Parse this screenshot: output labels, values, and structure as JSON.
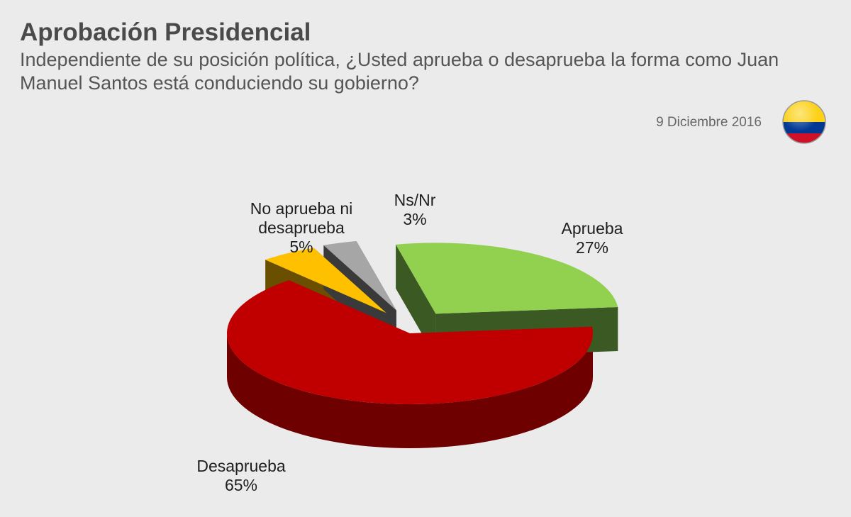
{
  "header": {
    "title": "Aprobación Presidencial",
    "question": "Independiente de su posición política, ¿Usted aprueba o desaprueba la forma como Juan Manuel Santos está conduciendo su gobierno?",
    "date": "9 Diciembre 2016",
    "flag_icon": "colombia-flag-icon",
    "flag_colors": [
      "#fcd116",
      "#003893",
      "#ce1126"
    ]
  },
  "chart_data": {
    "type": "pie",
    "title": "Aprobación Presidencial",
    "slices": [
      {
        "label_lines": [
          "Aprueba"
        ],
        "label": "Aprueba",
        "value": 27,
        "value_label": "27%",
        "color": "#92d050",
        "side_color": "#3b5a23",
        "exploded": true
      },
      {
        "label_lines": [
          "Desaprueba"
        ],
        "label": "Desaprueba",
        "value": 65,
        "value_label": "65%",
        "color": "#c00000",
        "side_color": "#6e0000",
        "exploded": false
      },
      {
        "label_lines": [
          "No aprueba ni",
          "desaprueba"
        ],
        "label": "No aprueba ni desaprueba",
        "value": 5,
        "value_label": "5%",
        "color": "#ffc000",
        "side_color": "#6b4f00",
        "exploded": true
      },
      {
        "label_lines": [
          "Ns/Nr"
        ],
        "label": "Ns/Nr",
        "value": 3,
        "value_label": "3%",
        "color": "#a6a6a6",
        "side_color": "#3a3a3a",
        "exploded": true
      }
    ]
  }
}
